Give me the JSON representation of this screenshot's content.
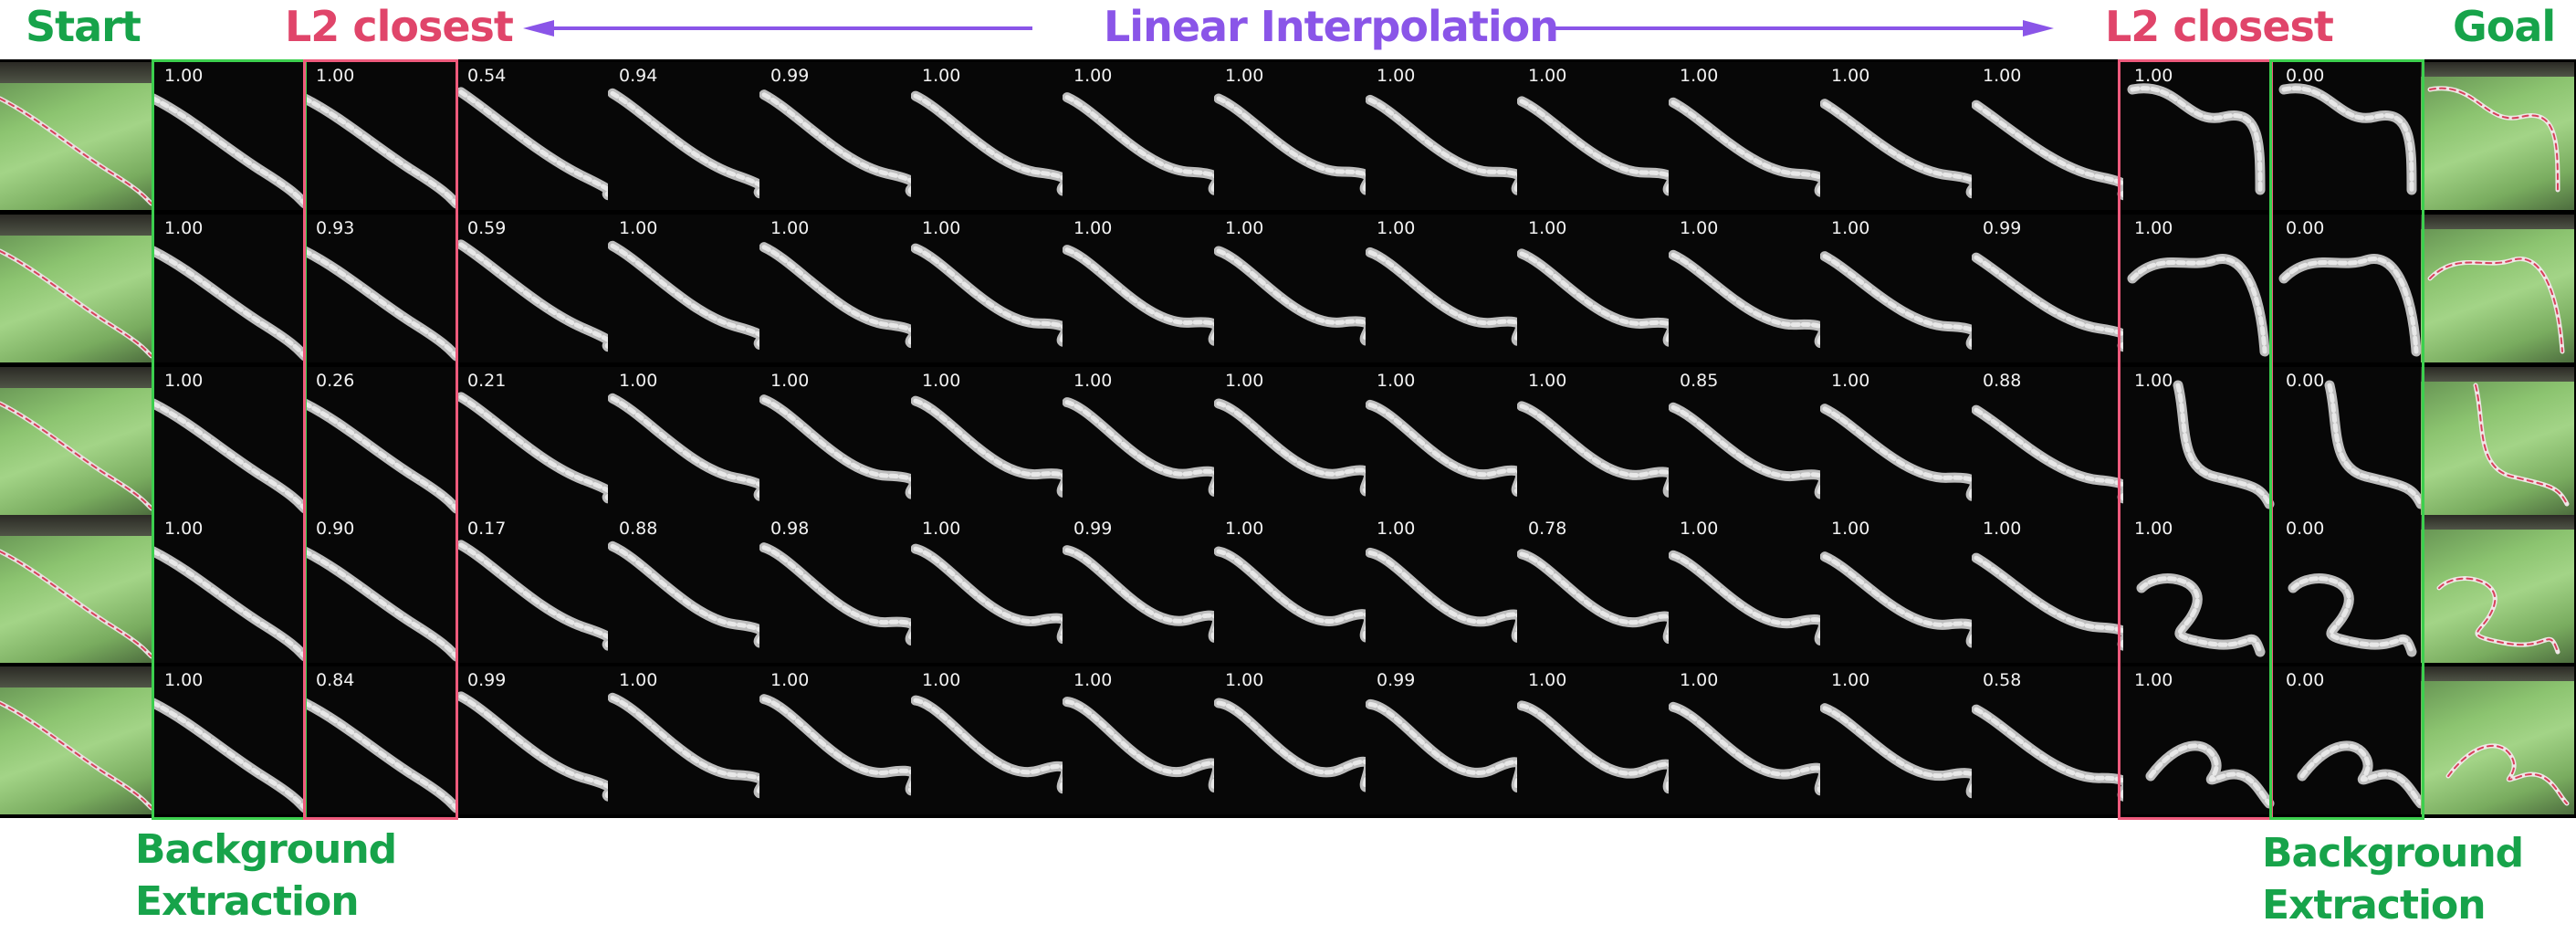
{
  "labels": {
    "start": "Start",
    "l2_closest_left": "L2 closest",
    "linear_interpolation": "Linear Interpolation",
    "l2_closest_right": "L2 closest",
    "goal": "Goal",
    "background_extraction_left": [
      "Background",
      "Extraction"
    ],
    "background_extraction_right": [
      "Background",
      "Extraction"
    ]
  },
  "colors": {
    "green": "#17a34a",
    "red": "#e0456a",
    "purple": "#8a55e8",
    "frame_green": "#3ccf4e",
    "frame_red": "#ee5a7c"
  },
  "scores": [
    [
      "1.00",
      "1.00",
      "0.54",
      "0.94",
      "0.99",
      "1.00",
      "1.00",
      "1.00",
      "1.00",
      "1.00",
      "1.00",
      "1.00",
      "1.00",
      "1.00",
      "0.00"
    ],
    [
      "1.00",
      "0.93",
      "0.59",
      "1.00",
      "1.00",
      "1.00",
      "1.00",
      "1.00",
      "1.00",
      "1.00",
      "1.00",
      "1.00",
      "0.99",
      "1.00",
      "0.00"
    ],
    [
      "1.00",
      "0.26",
      "0.21",
      "1.00",
      "1.00",
      "1.00",
      "1.00",
      "1.00",
      "1.00",
      "1.00",
      "0.85",
      "1.00",
      "0.88",
      "1.00",
      "0.00"
    ],
    [
      "1.00",
      "0.90",
      "0.17",
      "0.88",
      "0.98",
      "1.00",
      "0.99",
      "1.00",
      "1.00",
      "0.78",
      "1.00",
      "1.00",
      "1.00",
      "1.00",
      "0.00"
    ],
    [
      "1.00",
      "0.84",
      "0.99",
      "1.00",
      "1.00",
      "1.00",
      "1.00",
      "1.00",
      "0.99",
      "1.00",
      "1.00",
      "1.00",
      "0.58",
      "1.00",
      "0.00"
    ]
  ]
}
